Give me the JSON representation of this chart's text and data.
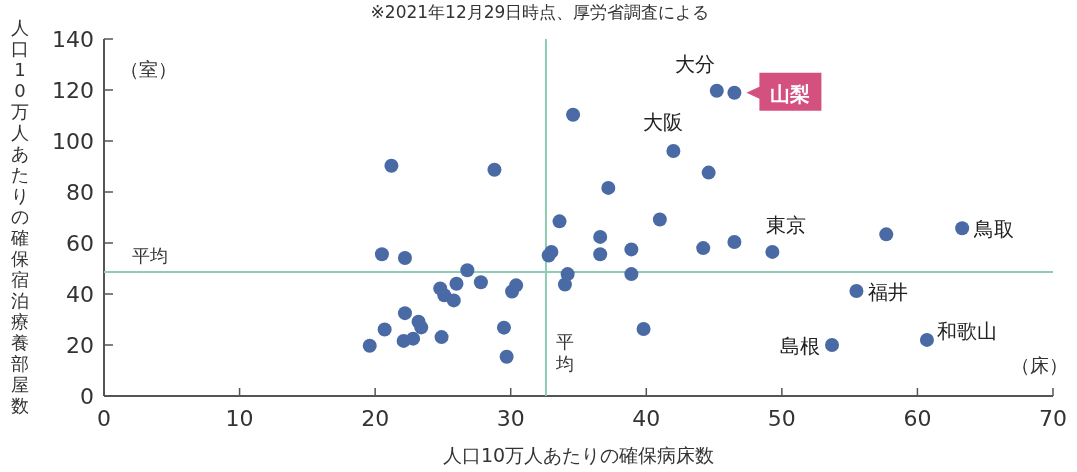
{
  "chart_data": {
    "type": "scatter",
    "xlabel": "人口10万人あたりの確保病床数",
    "ylabel": "人口10万人あたりの確保宿泊療養部屋数",
    "xlim": [
      0,
      70
    ],
    "xticks": [
      0,
      10,
      20,
      30,
      40,
      50,
      60,
      70
    ],
    "ylim": [
      0,
      140
    ],
    "yticks": [
      0,
      20,
      40,
      60,
      80,
      100,
      120,
      140
    ],
    "marker": "circle",
    "grid": false,
    "series": [
      {
        "color": "#4a6aa5",
        "x": [
          21.2,
          28.8,
          20.5,
          22.2,
          26.8,
          26.0,
          27.8,
          24.8,
          25.1,
          25.8,
          30.4,
          30.1,
          22.2,
          23.2,
          23.4,
          20.7,
          29.5,
          24.9,
          22.1,
          22.8,
          19.6,
          29.7,
          33.0,
          32.8,
          34.2,
          34.0,
          38.9,
          39.8,
          55.5,
          53.7,
          60.7,
          45.2,
          46.5,
          34.6,
          42.0,
          44.6,
          37.2,
          33.6,
          41.0,
          36.6,
          36.6,
          38.9,
          44.2,
          46.5,
          49.3,
          57.7,
          63.3
        ],
        "values": [
          90.3,
          88.7,
          55.6,
          54.1,
          49.3,
          44.0,
          44.6,
          42.2,
          39.5,
          37.5,
          43.4,
          41.0,
          32.5,
          29.1,
          26.9,
          26.1,
          26.8,
          23.1,
          21.6,
          22.5,
          19.7,
          15.4,
          56.5,
          55.1,
          47.8,
          43.7,
          47.8,
          26.3,
          41.2,
          20.0,
          22.0,
          119.7,
          118.9,
          110.3,
          96.1,
          87.6,
          81.6,
          68.5,
          69.2,
          62.4,
          55.6,
          57.5,
          58.0,
          60.4,
          56.5,
          63.4,
          65.8
        ]
      }
    ],
    "ref_lines": [
      {
        "axis": "x",
        "value": 32.6,
        "label": "平均",
        "color": "#8fcbb5"
      },
      {
        "axis": "y",
        "value": 48.6,
        "label": "平均",
        "color": "#8fcbb5"
      }
    ],
    "annotations": [
      "※2021年12月29日時点、厚労省調査による",
      "（室）",
      "（床）",
      {
        "text": "大分",
        "x": 45.2,
        "y": 119.7
      },
      {
        "text": "山梨",
        "x": 46.5,
        "y": 118.9
      },
      {
        "text": "大阪",
        "x": 42.0,
        "y": 96.1
      },
      {
        "text": "東京",
        "x": 49.3,
        "y": 56.5
      },
      {
        "text": "鳥取",
        "x": 63.3,
        "y": 65.8
      },
      {
        "text": "福井",
        "x": 55.5,
        "y": 41.2
      },
      {
        "text": "島根",
        "x": 53.7,
        "y": 20.0
      },
      {
        "text": "和歌山",
        "x": 60.7,
        "y": 22.0
      }
    ]
  }
}
